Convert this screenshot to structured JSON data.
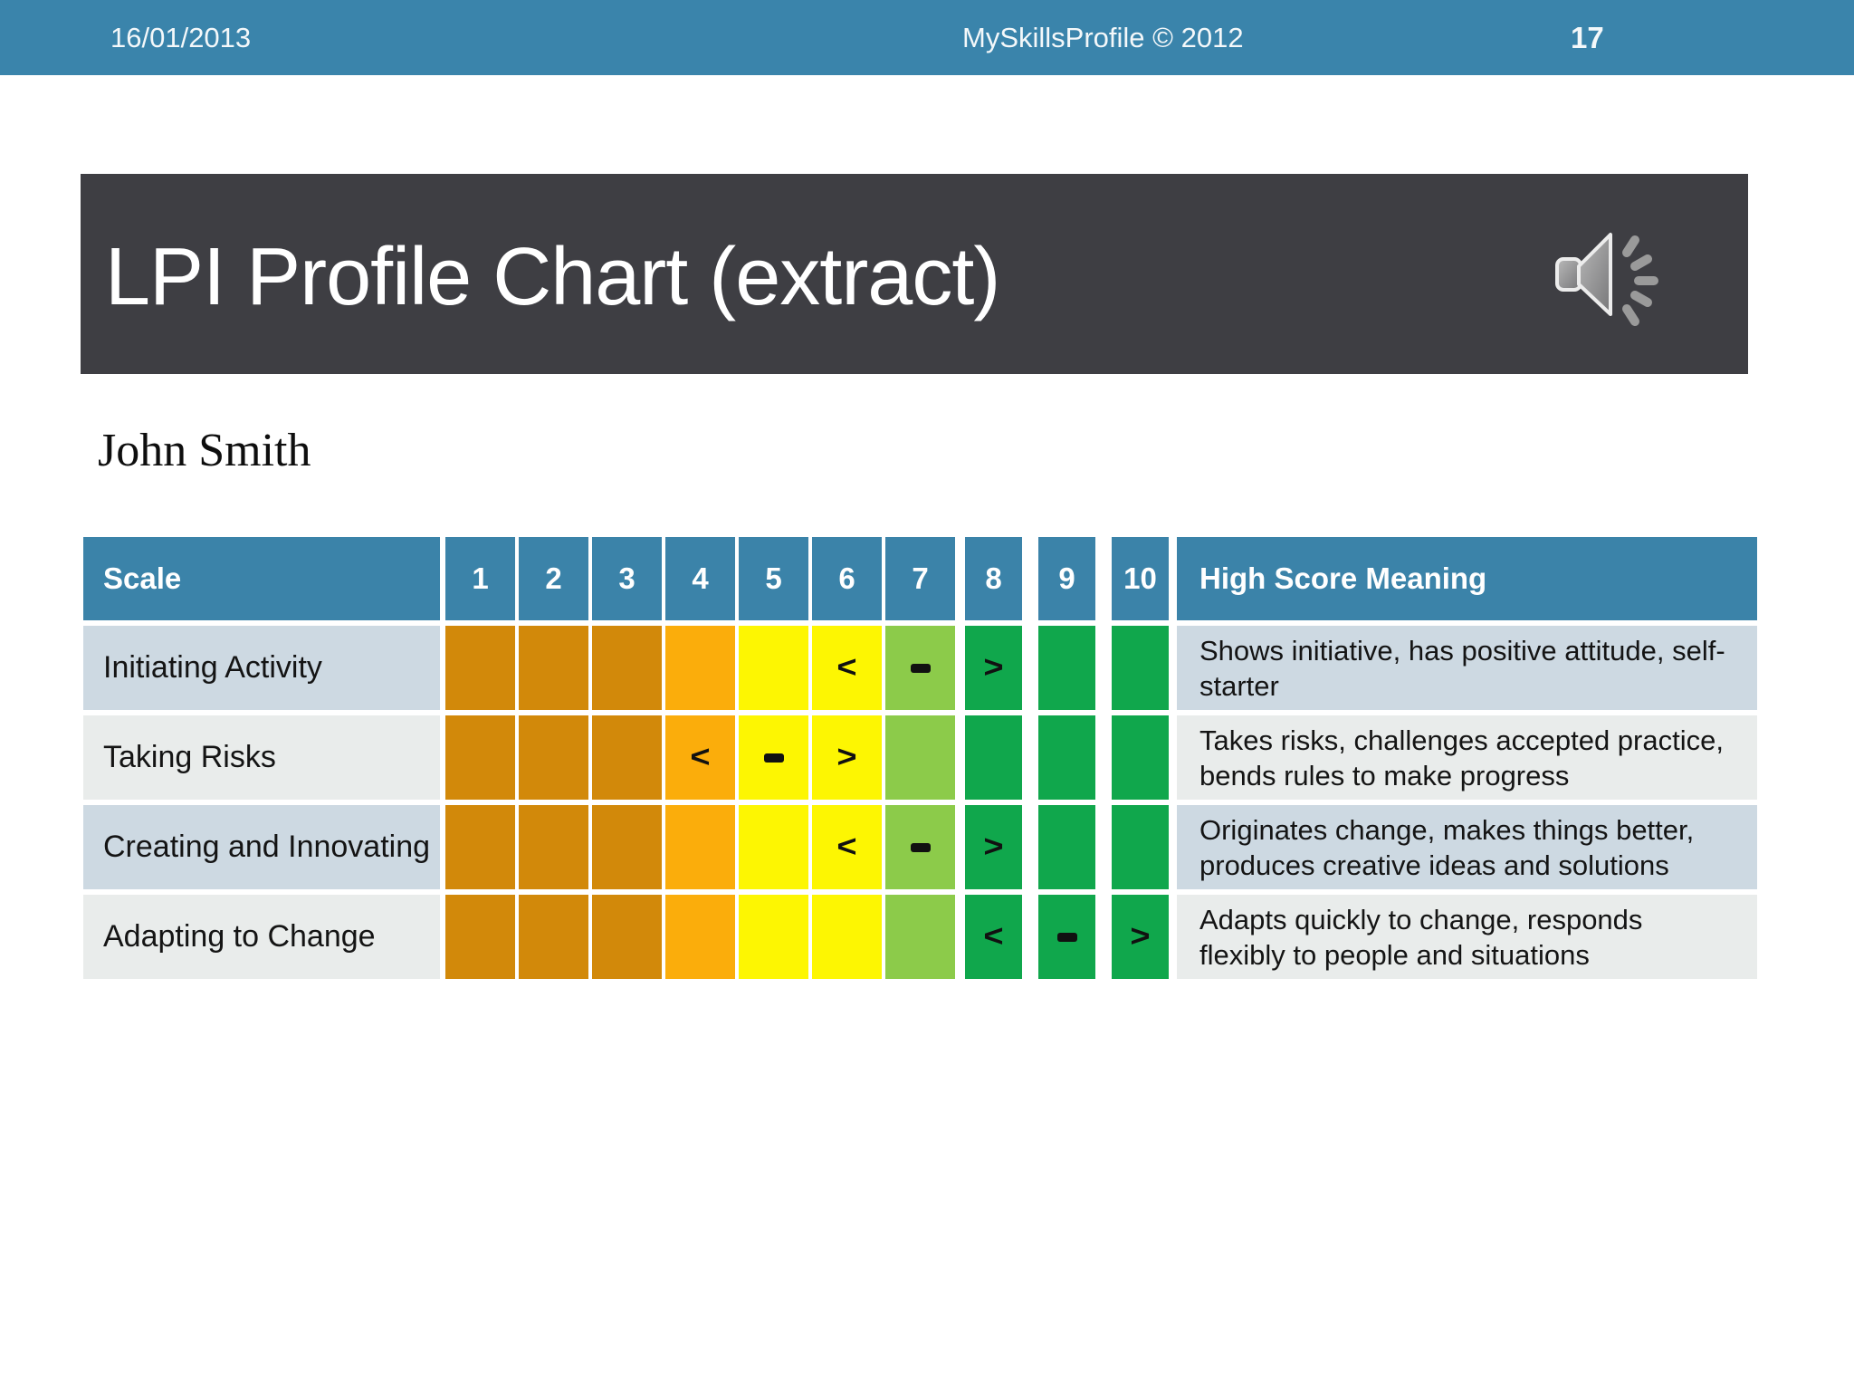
{
  "top_bar": {
    "date": "16/01/2013",
    "center": "MySkillsProfile © 2012",
    "page": "17"
  },
  "title": {
    "text": "LPI Profile Chart (extract)",
    "audio_icon": "speaker-icon"
  },
  "person": "John Smith",
  "table": {
    "headers": {
      "scale": "Scale",
      "numbers": [
        "1",
        "2",
        "3",
        "4",
        "5",
        "6",
        "7",
        "8",
        "9",
        "10"
      ],
      "meaning": "High Score Meaning"
    },
    "band_colors": [
      "#d2890a",
      "#d2890a",
      "#d2890a",
      "#fbad0b",
      "#fdf602",
      "#fdf602",
      "#8ccb4a",
      "#10a74c",
      "#10a74c",
      "#10a74c"
    ],
    "header_color": "#3b83a9",
    "row_tones": [
      "#cdd9e2",
      "#e9eceb"
    ],
    "rows": [
      {
        "label": "Initiating Activity",
        "markers": {
          "6": "<",
          "7": "-",
          "8": ">"
        },
        "meaning": "Shows initiative, has positive attitude, self-starter"
      },
      {
        "label": "Taking Risks",
        "markers": {
          "4": "<",
          "5": "-",
          "6": ">"
        },
        "meaning": "Takes risks, challenges accepted practice, bends rules to make progress"
      },
      {
        "label": "Creating and Innovating",
        "markers": {
          "6": "<",
          "7": "-",
          "8": ">"
        },
        "meaning": "Originates change, makes things better, produces creative ideas and solutions"
      },
      {
        "label": "Adapting to Change",
        "markers": {
          "8": "<",
          "9": "-",
          "10": ">"
        },
        "meaning": "Adapts quickly to change, responds flexibly to people and situations"
      }
    ]
  }
}
